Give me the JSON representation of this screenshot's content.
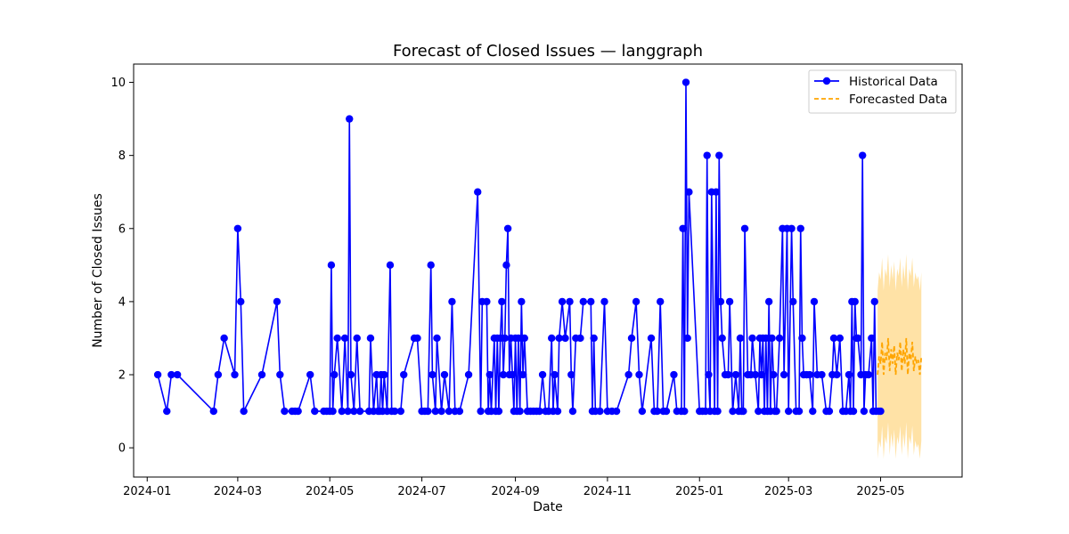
{
  "chart_data": {
    "type": "line",
    "title": "Forecast of Closed Issues — langgraph",
    "xlabel": "Date",
    "ylabel": "Number of Closed Issues",
    "xlim": [
      "2023-12-23",
      "2025-06-24"
    ],
    "ylim": [
      -0.8,
      10.5
    ],
    "x_ticks": [
      "2024-01",
      "2024-03",
      "2024-05",
      "2024-07",
      "2024-09",
      "2024-11",
      "2025-01",
      "2025-03",
      "2025-05"
    ],
    "y_ticks": [
      0,
      2,
      4,
      6,
      8,
      10
    ],
    "grid": false,
    "legend_position": "top-right",
    "series": [
      {
        "name": "Historical Data",
        "style": "solid-line-with-dots",
        "color": "#0000ff",
        "points": [
          [
            "2024-01-08",
            2
          ],
          [
            "2024-01-14",
            1
          ],
          [
            "2024-01-17",
            2
          ],
          [
            "2024-01-21",
            2
          ],
          [
            "2024-02-14",
            1
          ],
          [
            "2024-02-17",
            2
          ],
          [
            "2024-02-21",
            3
          ],
          [
            "2024-02-28",
            2
          ],
          [
            "2024-03-01",
            6
          ],
          [
            "2024-03-03",
            4
          ],
          [
            "2024-03-05",
            1
          ],
          [
            "2024-03-17",
            2
          ],
          [
            "2024-03-27",
            4
          ],
          [
            "2024-03-29",
            2
          ],
          [
            "2024-04-01",
            1
          ],
          [
            "2024-04-06",
            1
          ],
          [
            "2024-04-08",
            1
          ],
          [
            "2024-04-10",
            1
          ],
          [
            "2024-04-18",
            2
          ],
          [
            "2024-04-21",
            1
          ],
          [
            "2024-04-27",
            1
          ],
          [
            "2024-04-29",
            1
          ],
          [
            "2024-05-01",
            1
          ],
          [
            "2024-05-02",
            5
          ],
          [
            "2024-05-03",
            1
          ],
          [
            "2024-05-04",
            2
          ],
          [
            "2024-05-06",
            3
          ],
          [
            "2024-05-09",
            1
          ],
          [
            "2024-05-11",
            3
          ],
          [
            "2024-05-13",
            1
          ],
          [
            "2024-05-14",
            9
          ],
          [
            "2024-05-15",
            2
          ],
          [
            "2024-05-17",
            1
          ],
          [
            "2024-05-19",
            3
          ],
          [
            "2024-05-21",
            1
          ],
          [
            "2024-05-27",
            1
          ],
          [
            "2024-05-28",
            3
          ],
          [
            "2024-05-30",
            1
          ],
          [
            "2024-06-01",
            2
          ],
          [
            "2024-06-02",
            1
          ],
          [
            "2024-06-03",
            1
          ],
          [
            "2024-06-04",
            2
          ],
          [
            "2024-06-05",
            1
          ],
          [
            "2024-06-06",
            2
          ],
          [
            "2024-06-08",
            1
          ],
          [
            "2024-06-10",
            5
          ],
          [
            "2024-06-11",
            1
          ],
          [
            "2024-06-13",
            1
          ],
          [
            "2024-06-17",
            1
          ],
          [
            "2024-06-19",
            2
          ],
          [
            "2024-06-26",
            3
          ],
          [
            "2024-06-28",
            3
          ],
          [
            "2024-07-01",
            1
          ],
          [
            "2024-07-03",
            1
          ],
          [
            "2024-07-05",
            1
          ],
          [
            "2024-07-07",
            5
          ],
          [
            "2024-07-08",
            2
          ],
          [
            "2024-07-10",
            1
          ],
          [
            "2024-07-11",
            3
          ],
          [
            "2024-07-14",
            1
          ],
          [
            "2024-07-16",
            2
          ],
          [
            "2024-07-19",
            1
          ],
          [
            "2024-07-21",
            4
          ],
          [
            "2024-07-23",
            1
          ],
          [
            "2024-07-26",
            1
          ],
          [
            "2024-08-01",
            2
          ],
          [
            "2024-08-07",
            7
          ],
          [
            "2024-08-09",
            1
          ],
          [
            "2024-08-10",
            4
          ],
          [
            "2024-08-13",
            4
          ],
          [
            "2024-08-14",
            1
          ],
          [
            "2024-08-15",
            2
          ],
          [
            "2024-08-16",
            1
          ],
          [
            "2024-08-18",
            3
          ],
          [
            "2024-08-19",
            1
          ],
          [
            "2024-08-20",
            3
          ],
          [
            "2024-08-21",
            1
          ],
          [
            "2024-08-22",
            3
          ],
          [
            "2024-08-23",
            4
          ],
          [
            "2024-08-24",
            2
          ],
          [
            "2024-08-25",
            3
          ],
          [
            "2024-08-26",
            5
          ],
          [
            "2024-08-27",
            6
          ],
          [
            "2024-08-28",
            2
          ],
          [
            "2024-08-29",
            3
          ],
          [
            "2024-08-30",
            2
          ],
          [
            "2024-08-31",
            1
          ],
          [
            "2024-09-01",
            3
          ],
          [
            "2024-09-02",
            1
          ],
          [
            "2024-09-03",
            3
          ],
          [
            "2024-09-04",
            1
          ],
          [
            "2024-09-05",
            4
          ],
          [
            "2024-09-06",
            2
          ],
          [
            "2024-09-07",
            3
          ],
          [
            "2024-09-09",
            1
          ],
          [
            "2024-09-11",
            1
          ],
          [
            "2024-09-13",
            1
          ],
          [
            "2024-09-15",
            1
          ],
          [
            "2024-09-17",
            1
          ],
          [
            "2024-09-19",
            2
          ],
          [
            "2024-09-21",
            1
          ],
          [
            "2024-09-23",
            1
          ],
          [
            "2024-09-25",
            3
          ],
          [
            "2024-09-26",
            1
          ],
          [
            "2024-09-27",
            2
          ],
          [
            "2024-09-29",
            1
          ],
          [
            "2024-09-30",
            3
          ],
          [
            "2024-10-02",
            4
          ],
          [
            "2024-10-04",
            3
          ],
          [
            "2024-10-07",
            4
          ],
          [
            "2024-10-08",
            2
          ],
          [
            "2024-10-09",
            1
          ],
          [
            "2024-10-11",
            3
          ],
          [
            "2024-10-14",
            3
          ],
          [
            "2024-10-16",
            4
          ],
          [
            "2024-10-21",
            4
          ],
          [
            "2024-10-22",
            1
          ],
          [
            "2024-10-23",
            3
          ],
          [
            "2024-10-24",
            1
          ],
          [
            "2024-10-27",
            1
          ],
          [
            "2024-10-30",
            4
          ],
          [
            "2024-11-01",
            1
          ],
          [
            "2024-11-04",
            1
          ],
          [
            "2024-11-07",
            1
          ],
          [
            "2024-11-15",
            2
          ],
          [
            "2024-11-17",
            3
          ],
          [
            "2024-11-20",
            4
          ],
          [
            "2024-11-22",
            2
          ],
          [
            "2024-11-24",
            1
          ],
          [
            "2024-11-30",
            3
          ],
          [
            "2024-12-02",
            1
          ],
          [
            "2024-12-04",
            1
          ],
          [
            "2024-12-06",
            4
          ],
          [
            "2024-12-08",
            1
          ],
          [
            "2024-12-10",
            1
          ],
          [
            "2024-12-15",
            2
          ],
          [
            "2024-12-17",
            1
          ],
          [
            "2024-12-20",
            1
          ],
          [
            "2024-12-21",
            6
          ],
          [
            "2024-12-22",
            1
          ],
          [
            "2024-12-23",
            10
          ],
          [
            "2024-12-24",
            3
          ],
          [
            "2024-12-25",
            7
          ],
          [
            "2025-01-01",
            1
          ],
          [
            "2025-01-03",
            1
          ],
          [
            "2025-01-05",
            1
          ],
          [
            "2025-01-06",
            8
          ],
          [
            "2025-01-07",
            2
          ],
          [
            "2025-01-08",
            1
          ],
          [
            "2025-01-09",
            7
          ],
          [
            "2025-01-11",
            1
          ],
          [
            "2025-01-12",
            7
          ],
          [
            "2025-01-13",
            1
          ],
          [
            "2025-01-14",
            8
          ],
          [
            "2025-01-15",
            4
          ],
          [
            "2025-01-16",
            3
          ],
          [
            "2025-01-18",
            2
          ],
          [
            "2025-01-20",
            2
          ],
          [
            "2025-01-21",
            4
          ],
          [
            "2025-01-23",
            1
          ],
          [
            "2025-01-25",
            2
          ],
          [
            "2025-01-27",
            1
          ],
          [
            "2025-01-28",
            3
          ],
          [
            "2025-01-29",
            1
          ],
          [
            "2025-01-30",
            1
          ],
          [
            "2025-01-31",
            6
          ],
          [
            "2025-02-02",
            2
          ],
          [
            "2025-02-04",
            2
          ],
          [
            "2025-02-05",
            3
          ],
          [
            "2025-02-07",
            2
          ],
          [
            "2025-02-09",
            1
          ],
          [
            "2025-02-10",
            3
          ],
          [
            "2025-02-11",
            2
          ],
          [
            "2025-02-12",
            3
          ],
          [
            "2025-02-13",
            1
          ],
          [
            "2025-02-14",
            3
          ],
          [
            "2025-02-15",
            1
          ],
          [
            "2025-02-16",
            4
          ],
          [
            "2025-02-17",
            1
          ],
          [
            "2025-02-18",
            3
          ],
          [
            "2025-02-19",
            2
          ],
          [
            "2025-02-20",
            1
          ],
          [
            "2025-02-21",
            1
          ],
          [
            "2025-02-23",
            3
          ],
          [
            "2025-02-25",
            6
          ],
          [
            "2025-02-26",
            2
          ],
          [
            "2025-02-28",
            6
          ],
          [
            "2025-03-01",
            1
          ],
          [
            "2025-03-03",
            6
          ],
          [
            "2025-03-04",
            4
          ],
          [
            "2025-03-06",
            1
          ],
          [
            "2025-03-08",
            1
          ],
          [
            "2025-03-09",
            6
          ],
          [
            "2025-03-10",
            3
          ],
          [
            "2025-03-11",
            2
          ],
          [
            "2025-03-13",
            2
          ],
          [
            "2025-03-15",
            2
          ],
          [
            "2025-03-17",
            1
          ],
          [
            "2025-03-18",
            4
          ],
          [
            "2025-03-20",
            2
          ],
          [
            "2025-03-23",
            2
          ],
          [
            "2025-03-26",
            1
          ],
          [
            "2025-03-28",
            1
          ],
          [
            "2025-03-30",
            2
          ],
          [
            "2025-03-31",
            3
          ],
          [
            "2025-04-02",
            2
          ],
          [
            "2025-04-04",
            3
          ],
          [
            "2025-04-06",
            1
          ],
          [
            "2025-04-08",
            1
          ],
          [
            "2025-04-10",
            2
          ],
          [
            "2025-04-11",
            1
          ],
          [
            "2025-04-12",
            4
          ],
          [
            "2025-04-13",
            1
          ],
          [
            "2025-04-14",
            4
          ],
          [
            "2025-04-15",
            3
          ],
          [
            "2025-04-16",
            3
          ],
          [
            "2025-04-18",
            2
          ],
          [
            "2025-04-19",
            8
          ],
          [
            "2025-04-20",
            1
          ],
          [
            "2025-04-21",
            2
          ],
          [
            "2025-04-23",
            2
          ],
          [
            "2025-04-25",
            3
          ],
          [
            "2025-04-26",
            1
          ],
          [
            "2025-04-27",
            4
          ],
          [
            "2025-04-28",
            1
          ],
          [
            "2025-04-30",
            1
          ],
          [
            "2025-05-01",
            1
          ]
        ]
      },
      {
        "name": "Forecasted Data",
        "style": "dashed-line",
        "color": "#ffa500",
        "points": [
          [
            "2025-04-29",
            2.0
          ],
          [
            "2025-04-30",
            2.5
          ],
          [
            "2025-05-01",
            2.3
          ],
          [
            "2025-05-02",
            2.9
          ],
          [
            "2025-05-03",
            2.0
          ],
          [
            "2025-05-04",
            2.6
          ],
          [
            "2025-05-05",
            2.4
          ],
          [
            "2025-05-06",
            3.0
          ],
          [
            "2025-05-07",
            2.1
          ],
          [
            "2025-05-08",
            2.7
          ],
          [
            "2025-05-09",
            2.3
          ],
          [
            "2025-05-10",
            2.8
          ],
          [
            "2025-05-11",
            2.0
          ],
          [
            "2025-05-12",
            2.6
          ],
          [
            "2025-05-13",
            2.4
          ],
          [
            "2025-05-14",
            2.9
          ],
          [
            "2025-05-15",
            2.1
          ],
          [
            "2025-05-16",
            2.7
          ],
          [
            "2025-05-17",
            2.3
          ],
          [
            "2025-05-18",
            3.0
          ],
          [
            "2025-05-19",
            2.0
          ],
          [
            "2025-05-20",
            2.6
          ],
          [
            "2025-05-21",
            2.4
          ],
          [
            "2025-05-22",
            2.9
          ],
          [
            "2025-05-23",
            2.1
          ],
          [
            "2025-05-24",
            2.5
          ],
          [
            "2025-05-25",
            2.3
          ],
          [
            "2025-05-26",
            2.4
          ],
          [
            "2025-05-27",
            2.0
          ],
          [
            "2025-05-28",
            2.5
          ]
        ],
        "band_half_width": 2.3,
        "band_color": "#ffd580"
      }
    ]
  }
}
